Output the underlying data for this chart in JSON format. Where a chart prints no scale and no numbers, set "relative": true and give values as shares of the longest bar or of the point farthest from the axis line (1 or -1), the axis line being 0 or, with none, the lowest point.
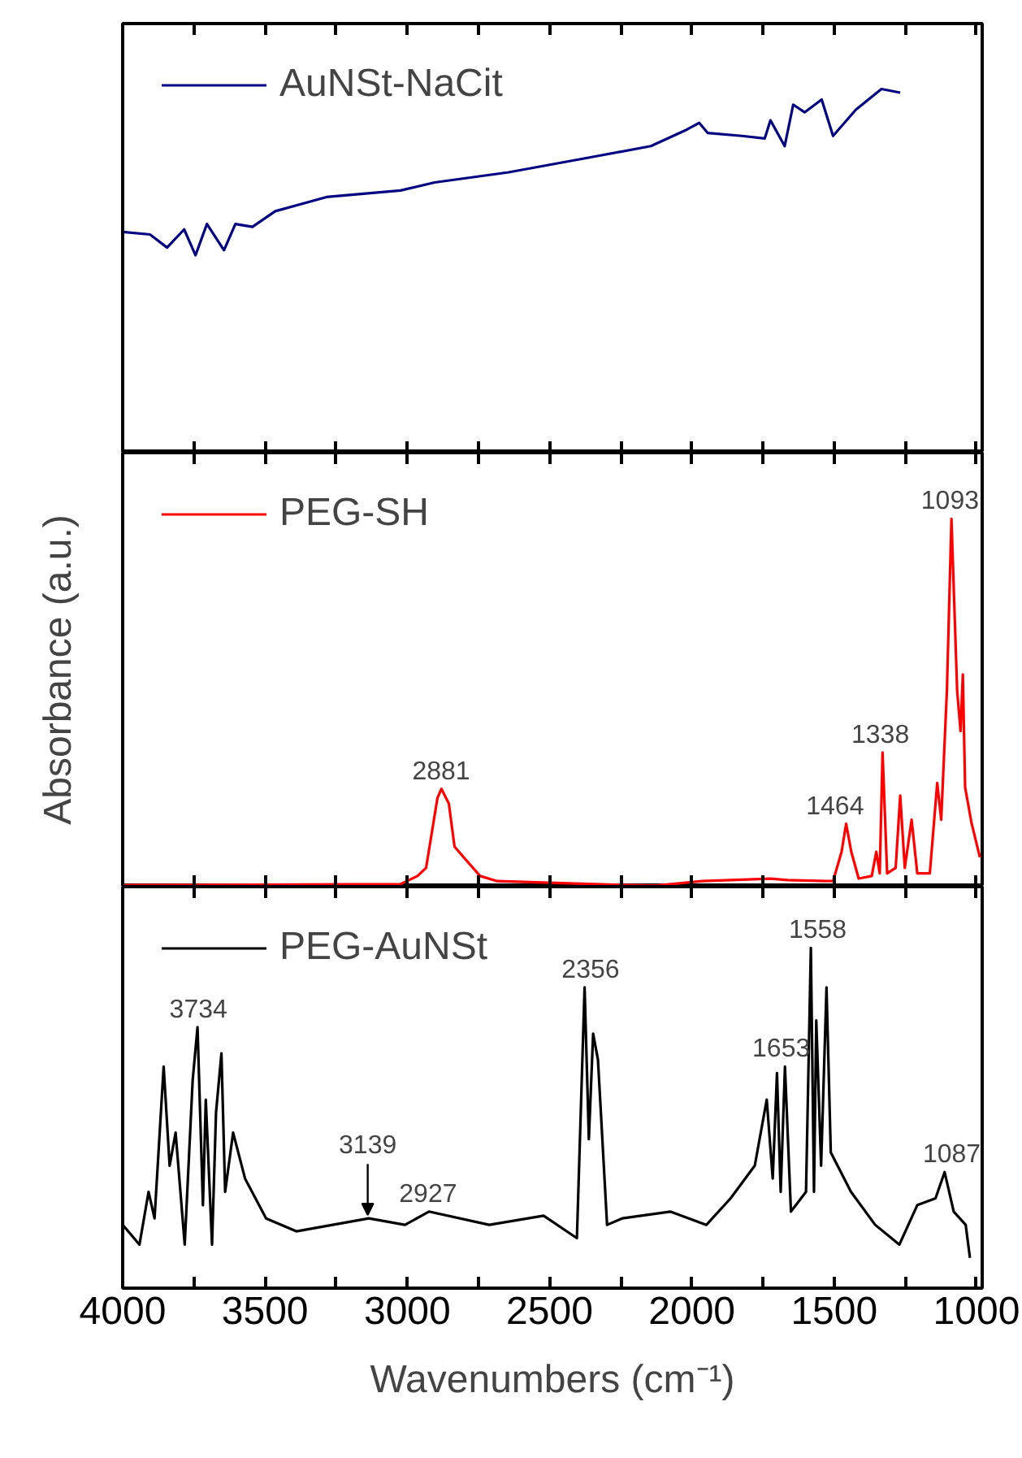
{
  "chart_data": [
    {
      "type": "line",
      "relative": true,
      "xlim": [
        4000,
        980
      ],
      "xticks": [
        4000,
        {
          "value": 3750,
          "label": null
        },
        3500,
        {
          "value": 3250,
          "label": null
        },
        3000,
        {
          "value": 2750,
          "label": null
        },
        2500,
        {
          "value": 2250,
          "label": null
        },
        2000,
        {
          "value": 1750,
          "label": null
        },
        1500,
        {
          "value": 1250,
          "label": null
        },
        1000
      ],
      "tick_labels": false,
      "grid": false,
      "legend": "top left",
      "line_style": "solid",
      "marker": "none",
      "series": [
        {
          "name": "AuNSt-NaCit",
          "color": "#000080",
          "x": [
            4000,
            3904,
            3844,
            3784,
            3744,
            3704,
            3644,
            3604,
            3544,
            3464,
            3284,
            3024,
            2904,
            2644,
            2344,
            2144,
            2024,
            1974,
            1944,
            1824,
            1744,
            1724,
            1674,
            1644,
            1604,
            1544,
            1504,
            1424,
            1334,
            1268
          ],
          "values": [
            0.607,
            0.6,
            0.564,
            0.614,
            0.543,
            0.629,
            0.557,
            0.629,
            0.621,
            0.664,
            0.703,
            0.721,
            0.743,
            0.771,
            0.814,
            0.843,
            0.886,
            0.907,
            0.879,
            0.871,
            0.864,
            0.914,
            0.843,
            0.957,
            0.936,
            0.971,
            0.871,
            0.943,
            1.0,
            0.99
          ]
        }
      ]
    },
    {
      "type": "line",
      "relative": true,
      "xlim": [
        4000,
        980
      ],
      "xticks": [
        4000,
        {
          "value": 3750,
          "label": null
        },
        3500,
        {
          "value": 3250,
          "label": null
        },
        3000,
        {
          "value": 2750,
          "label": null
        },
        2500,
        {
          "value": 2250,
          "label": null
        },
        2000,
        {
          "value": 1750,
          "label": null
        },
        1500,
        {
          "value": 1250,
          "label": null
        },
        1000
      ],
      "tick_labels": false,
      "grid": false,
      "legend": "top left",
      "line_style": "solid",
      "marker": "none",
      "ylabel": "Absorbance (a.u.)",
      "series": [
        {
          "name": "PEG-SH",
          "color": "#ff0000",
          "x": [
            4000,
            3024,
            2964,
            2934,
            2894,
            2880,
            2854,
            2834,
            2794,
            2744,
            2684,
            2224,
            2124,
            1964,
            1724,
            1664,
            1504,
            1474,
            1458,
            1440,
            1414,
            1368,
            1352,
            1340,
            1330,
            1314,
            1284,
            1268,
            1252,
            1228,
            1208,
            1164,
            1138,
            1124,
            1104,
            1088,
            1068,
            1056,
            1048,
            1040,
            1018,
            988
          ],
          "values": [
            0.004,
            0.007,
            0.029,
            0.051,
            0.241,
            0.266,
            0.226,
            0.109,
            0.073,
            0.029,
            0.015,
            0.004,
            0.003,
            0.015,
            0.022,
            0.018,
            0.015,
            0.095,
            0.171,
            0.095,
            0.022,
            0.029,
            0.095,
            0.036,
            0.365,
            0.036,
            0.051,
            0.248,
            0.051,
            0.182,
            0.036,
            0.036,
            0.282,
            0.182,
            0.533,
            1.0,
            0.533,
            0.423,
            0.577,
            0.27,
            0.175,
            0.08
          ]
        }
      ],
      "annotations": [
        {
          "text": "2881",
          "x": 2881,
          "y": 0.266
        },
        {
          "text": "1464",
          "x": 1464,
          "y": 0.171
        },
        {
          "text": "1338",
          "x": 1338,
          "y": 0.365
        },
        {
          "text": "1093",
          "x": 1093,
          "y": 1.0
        }
      ]
    },
    {
      "type": "line",
      "relative": true,
      "xlim": [
        4000,
        980
      ],
      "xticks": [
        4000,
        {
          "value": 3750,
          "label": null
        },
        3500,
        {
          "value": 3250,
          "label": null
        },
        3000,
        {
          "value": 2750,
          "label": null
        },
        2500,
        {
          "value": 2250,
          "label": null
        },
        2000,
        {
          "value": 1750,
          "label": null
        },
        1500,
        {
          "value": 1250,
          "label": null
        },
        1000
      ],
      "tick_labels": "x",
      "grid": false,
      "legend": "top left",
      "line_style": "solid",
      "marker": "none",
      "xlabel": "Wavenumbers (cm⁻¹)",
      "series": [
        {
          "name": "PEG-AuNSt",
          "color": "#000000",
          "x": [
            4000,
            3941,
            3909,
            3888,
            3856,
            3835,
            3814,
            3782,
            3754,
            3737,
            3718,
            3708,
            3686,
            3672,
            3653,
            3640,
            3612,
            3570,
            3496,
            3390,
            3135,
            3008,
            2924,
            2712,
            2521,
            2404,
            2377,
            2362,
            2347,
            2330,
            2298,
            2245,
            2076,
            1949,
            1864,
            1779,
            1737,
            1716,
            1701,
            1688,
            1673,
            1652,
            1599,
            1582,
            1571,
            1563,
            1546,
            1527,
            1512,
            1441,
            1356,
            1271,
            1208,
            1144,
            1112,
            1080,
            1038,
            1023
          ],
          "values": [
            0.186,
            0.128,
            0.283,
            0.205,
            0.651,
            0.36,
            0.457,
            0.128,
            0.612,
            0.767,
            0.244,
            0.554,
            0.128,
            0.516,
            0.69,
            0.283,
            0.457,
            0.322,
            0.205,
            0.167,
            0.205,
            0.186,
            0.225,
            0.186,
            0.213,
            0.147,
            0.884,
            0.438,
            0.748,
            0.671,
            0.186,
            0.205,
            0.225,
            0.186,
            0.264,
            0.36,
            0.554,
            0.322,
            0.632,
            0.283,
            0.651,
            0.225,
            0.283,
            1.0,
            0.283,
            0.787,
            0.36,
            0.884,
            0.399,
            0.283,
            0.186,
            0.128,
            0.244,
            0.264,
            0.341,
            0.225,
            0.186,
            0.089
          ]
        }
      ],
      "annotations": [
        {
          "text": "3734",
          "x": 3734,
          "y": 0.767
        },
        {
          "text": "3139",
          "x": 3139,
          "y": 0.205
        },
        {
          "text": "2927",
          "x": 2927,
          "y": 0.225
        },
        {
          "text": "2356",
          "x": 2356,
          "y": 0.884
        },
        {
          "text": "1653",
          "x": 1653,
          "y": 0.651
        },
        {
          "text": "1558",
          "x": 1558,
          "y": 1.0
        },
        {
          "text": "1087",
          "x": 1087,
          "y": 0.341
        }
      ]
    }
  ]
}
